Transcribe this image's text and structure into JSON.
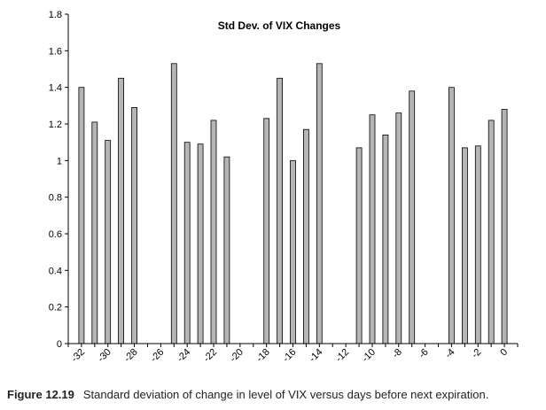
{
  "chart_data": {
    "type": "bar",
    "title": "Std Dev. of VIX Changes",
    "xlabel": "",
    "ylabel": "",
    "ylim": [
      0,
      1.8
    ],
    "yticks": [
      "0",
      "0.2",
      "0.4",
      "0.6",
      "0.8",
      "1",
      "1.2",
      "1.4",
      "1.6",
      "1.8"
    ],
    "xticks": [
      "-32",
      "-30",
      "-28",
      "-26",
      "-24",
      "-22",
      "-20",
      "-18",
      "-16",
      "-14",
      "-12",
      "-10",
      "-8",
      "-6",
      "-4",
      "-2",
      "0"
    ],
    "x": [
      -32,
      -31,
      -30,
      -29,
      -28,
      -25,
      -24,
      -23,
      -22,
      -21,
      -18,
      -17,
      -16,
      -15,
      -14,
      -11,
      -10,
      -9,
      -8,
      -7,
      -4,
      -3,
      -2,
      -1,
      0
    ],
    "values": [
      1.4,
      1.21,
      1.11,
      1.45,
      1.29,
      1.53,
      1.1,
      1.09,
      1.22,
      1.02,
      1.23,
      1.45,
      1.0,
      1.17,
      1.53,
      1.07,
      1.25,
      1.14,
      1.26,
      1.38,
      1.4,
      1.07,
      1.08,
      1.22,
      1.28
    ],
    "bar_color": "#b5b5b5",
    "grid": false
  },
  "caption": {
    "label": "Figure 12.19",
    "text": "Standard deviation of change in level of VIX versus days before next expiration."
  }
}
